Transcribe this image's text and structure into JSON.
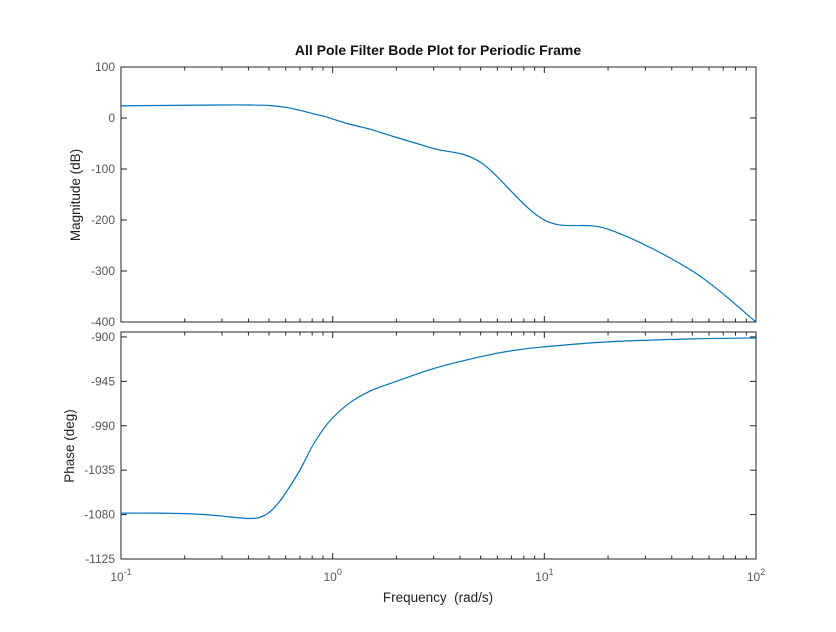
{
  "chart_data": {
    "type": "line",
    "title": "All Pole Filter Bode Plot for Periodic Frame",
    "xlabel": "Frequency  (rad/s)",
    "x_scale": "log",
    "xlim": [
      0.1,
      100
    ],
    "x_ticks": [
      {
        "base": "10",
        "exp": "-1"
      },
      {
        "base": "10",
        "exp": "0"
      },
      {
        "base": "10",
        "exp": "1"
      },
      {
        "base": "10",
        "exp": "2"
      }
    ],
    "line_color": "#0072BD",
    "panels": [
      {
        "name": "magnitude",
        "ylabel": "Magnitude (dB)",
        "ylim": [
          -400,
          100
        ],
        "y_ticks": [
          "100",
          "0",
          "-100",
          "-200",
          "-300",
          "-400"
        ],
        "series": [
          {
            "x": [
              0.1,
              0.15,
              0.2,
              0.3,
              0.4,
              0.5,
              0.6,
              0.7,
              0.8,
              0.9,
              1.0,
              1.2,
              1.5,
              2,
              3,
              5,
              10,
              20,
              50,
              100
            ],
            "values": [
              24,
              24.5,
              25,
              25.5,
              25.5,
              24.5,
              21,
              15,
              9,
              4,
              -2,
              -12,
              -22,
              -38,
              -60,
              -87,
              -200,
              -218,
              -300,
              -400
            ]
          }
        ]
      },
      {
        "name": "phase",
        "ylabel": "Phase (deg)",
        "ylim": [
          -1125,
          -895
        ],
        "y_ticks": [
          "-900",
          "-945",
          "-990",
          "-1035",
          "-1080",
          "-1125"
        ],
        "series": [
          {
            "x": [
              0.1,
              0.15,
              0.2,
              0.25,
              0.3,
              0.35,
              0.4,
              0.45,
              0.5,
              0.55,
              0.6,
              0.7,
              0.8,
              0.9,
              1.0,
              1.2,
              1.5,
              2,
              3,
              5,
              7,
              10,
              20,
              50,
              100
            ],
            "values": [
              -1078.5,
              -1078.5,
              -1079,
              -1080,
              -1081.5,
              -1083,
              -1084,
              -1083,
              -1078,
              -1069,
              -1058,
              -1035,
              -1011,
              -994,
              -982,
              -967,
              -955,
              -945,
              -932,
              -920,
              -914,
              -910,
              -905,
              -902,
              -901
            ]
          }
        ]
      }
    ]
  }
}
